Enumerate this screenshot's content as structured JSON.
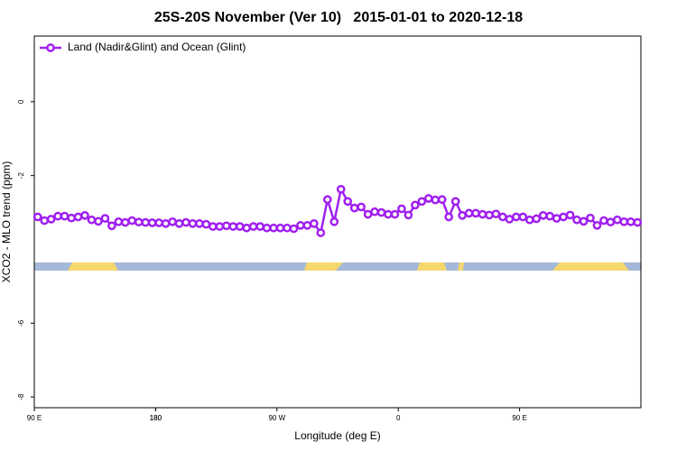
{
  "chart_data": {
    "type": "line",
    "title": "25S-20S November (Ver 10)   2015-01-01 to 2020-12-18",
    "x_label": "Longitude (deg E)",
    "y_label": "XCO2 - MLO trend (ppm)",
    "xlim": [
      90,
      540
    ],
    "ylim": [
      -8.29,
      1.78
    ],
    "xticks": [
      {
        "value": 90,
        "label": "90 E"
      },
      180,
      {
        "value": 270,
        "label": "90 W"
      },
      {
        "value": 360,
        "label": "0"
      },
      {
        "value": 450,
        "label": "90 E"
      },
      180.0001
    ],
    "yticks": [
      -8,
      -6,
      -2,
      0
    ],
    "legend": "top-left",
    "x": [
      92.5,
      97.5,
      102.5,
      107.5,
      112.5,
      117.5,
      122.5,
      127.5,
      132.5,
      137.5,
      142.5,
      147.5,
      152.5,
      157.5,
      162.5,
      167.5,
      172.5,
      177.5,
      182.5,
      187.5,
      192.5,
      197.5,
      202.5,
      207.5,
      212.5,
      217.5,
      222.5,
      227.5,
      232.5,
      237.5,
      242.5,
      247.5,
      252.5,
      257.5,
      262.5,
      267.5,
      272.5,
      277.5,
      282.5,
      287.5,
      292.5,
      297.5,
      302.5,
      307.5,
      312.5,
      317.5,
      322.5,
      327.5,
      332.5,
      337.5,
      342.5,
      347.5,
      352.5,
      357.5,
      362.5,
      367.5,
      372.5,
      377.5,
      382.5,
      387.5,
      392.5,
      397.5,
      402.5,
      407.5,
      412.5,
      417.5,
      422.5,
      427.5,
      432.5,
      437.5,
      442.5,
      447.5,
      452.5,
      457.5,
      462.5,
      467.5,
      472.5,
      477.5,
      482.5,
      487.5,
      492.5,
      497.5,
      502.5,
      507.5,
      512.5,
      517.5,
      522.5,
      527.5,
      532.5,
      537.5
    ],
    "series": [
      {
        "name": "Land (Nadir&Glint) and Ocean (Glint)",
        "color": "#a020f0",
        "values": [
          -3.12,
          -3.22,
          -3.18,
          -3.1,
          -3.1,
          -3.15,
          -3.12,
          -3.08,
          -3.2,
          -3.24,
          -3.16,
          -3.36,
          -3.25,
          -3.27,
          -3.22,
          -3.26,
          -3.27,
          -3.28,
          -3.28,
          -3.3,
          -3.25,
          -3.3,
          -3.27,
          -3.3,
          -3.3,
          -3.32,
          -3.38,
          -3.38,
          -3.36,
          -3.38,
          -3.38,
          -3.42,
          -3.38,
          -3.38,
          -3.42,
          -3.42,
          -3.42,
          -3.42,
          -3.44,
          -3.35,
          -3.35,
          -3.3,
          -3.55,
          -2.65,
          -3.25,
          -2.37,
          -2.7,
          -2.88,
          -2.85,
          -3.05,
          -2.98,
          -3.0,
          -3.05,
          -3.05,
          -2.9,
          -3.07,
          -2.8,
          -2.7,
          -2.62,
          -2.66,
          -2.65,
          -3.12,
          -2.7,
          -3.08,
          -3.02,
          -3.02,
          -3.05,
          -3.07,
          -3.04,
          -3.12,
          -3.18,
          -3.12,
          -3.12,
          -3.2,
          -3.17,
          -3.08,
          -3.1,
          -3.16,
          -3.12,
          -3.07,
          -3.2,
          -3.24,
          -3.15,
          -3.35,
          -3.22,
          -3.26,
          -3.2,
          -3.25,
          -3.25,
          -3.27
        ]
      }
    ]
  }
}
